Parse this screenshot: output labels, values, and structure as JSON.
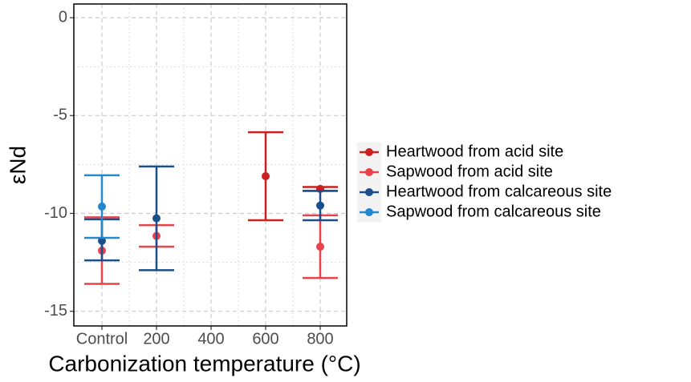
{
  "chart_data": {
    "type": "errorbar",
    "xlabel": "Carbonization temperature (°C)",
    "ylabel": "εNd",
    "categories": [
      "Control",
      "200",
      "400",
      "600",
      "800"
    ],
    "ylim": [
      -15.75,
      0.7
    ],
    "yticks": [
      -15,
      -10,
      -5,
      0
    ],
    "grid": true,
    "legend": "right",
    "series": [
      {
        "name": "Heartwood from acid site",
        "color": "#cc1f1f",
        "values": [
          null,
          null,
          null,
          -8.1,
          -8.75
        ],
        "ymin": [
          null,
          null,
          null,
          -10.35,
          -8.85
        ],
        "ymax": [
          null,
          null,
          null,
          -5.85,
          -8.65
        ]
      },
      {
        "name": "Sapwood from acid site",
        "color": "#e8424a",
        "values": [
          -11.9,
          -11.15,
          null,
          null,
          -11.7
        ],
        "ymin": [
          -13.6,
          -11.7,
          null,
          null,
          -13.3
        ],
        "ymax": [
          -10.2,
          -10.6,
          null,
          null,
          -10.1
        ]
      },
      {
        "name": "Heartwood from calcareous site",
        "color": "#1a4f8b",
        "values": [
          -11.4,
          -10.25,
          null,
          null,
          -9.6
        ],
        "ymin": [
          -12.4,
          -12.9,
          null,
          null,
          -10.35
        ],
        "ymax": [
          -10.3,
          -7.6,
          null,
          null,
          -8.85
        ]
      },
      {
        "name": "Sapwood from calcareous site",
        "color": "#2289d1",
        "values": [
          -9.65,
          null,
          null,
          null,
          null
        ],
        "ymin": [
          -11.25,
          null,
          null,
          null,
          null
        ],
        "ymax": [
          -8.05,
          null,
          null,
          null,
          null
        ]
      }
    ]
  }
}
